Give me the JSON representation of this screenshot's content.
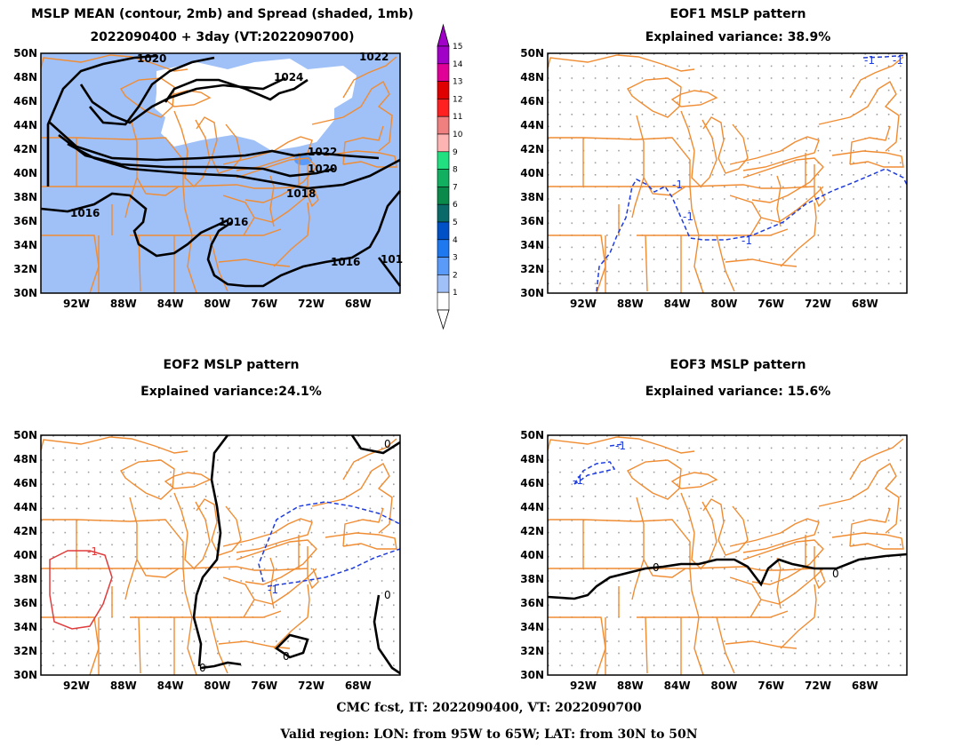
{
  "panels": [
    {
      "id": "mean",
      "title1": "MSLP MEAN (contour, 2mb) and Spread (shaded, 1mb)",
      "title2": "2022090400 + 3day (VT:2022090700)"
    },
    {
      "id": "eof1",
      "title1": "EOF1 MSLP pattern",
      "title2": "Explained variance: 38.9%"
    },
    {
      "id": "eof2",
      "title1": "EOF2 MSLP pattern",
      "title2": "Explained variance:24.1%"
    },
    {
      "id": "eof3",
      "title1": "EOF3 MSLP pattern",
      "title2": "Explained variance: 15.6%"
    }
  ],
  "axes": {
    "lat_labels": [
      "50N",
      "48N",
      "46N",
      "44N",
      "42N",
      "40N",
      "38N",
      "36N",
      "34N",
      "32N",
      "30N"
    ],
    "lon_labels": [
      "92W",
      "88W",
      "84W",
      "80W",
      "76W",
      "72W",
      "68W"
    ]
  },
  "colorbar": {
    "labels": [
      "15",
      "14",
      "13",
      "12",
      "11",
      "10",
      "9",
      "8",
      "7",
      "6",
      "5",
      "4",
      "3",
      "2",
      "1"
    ],
    "colors": [
      "#a000c8",
      "#e00098",
      "#e00000",
      "#ff2020",
      "#f08080",
      "#ffb4b4",
      "#20e080",
      "#10b060",
      "#0a8a4a",
      "#0a6a6a",
      "#0050c8",
      "#1e78f0",
      "#5a9af8",
      "#a0c0f8",
      "#ffffff"
    ]
  },
  "contour_labels": {
    "mean": [
      "1020",
      "1024",
      "1022",
      "1022",
      "1020",
      "1018",
      "1016",
      "1016",
      "1016",
      "101"
    ],
    "eof1": [
      "-1",
      "-1",
      "-1",
      "-1",
      "-1"
    ],
    "eof2": [
      "0",
      "0",
      "0",
      "0",
      "-1",
      "-1"
    ],
    "eof3": [
      "-1",
      "-1",
      "0",
      "0"
    ]
  },
  "footer": {
    "line1": "CMC fcst, IT: 2022090400, VT: 2022090700",
    "line2": "Valid region: LON: from 95W to 65W; LAT: from 30N to 50N"
  },
  "colors": {
    "map": "#f08c32",
    "contour": "#000000",
    "neg": "#1e3cdc",
    "pos": "#e03c3c",
    "spread2": "#a0c0f8",
    "spread3": "#5a9af8"
  }
}
